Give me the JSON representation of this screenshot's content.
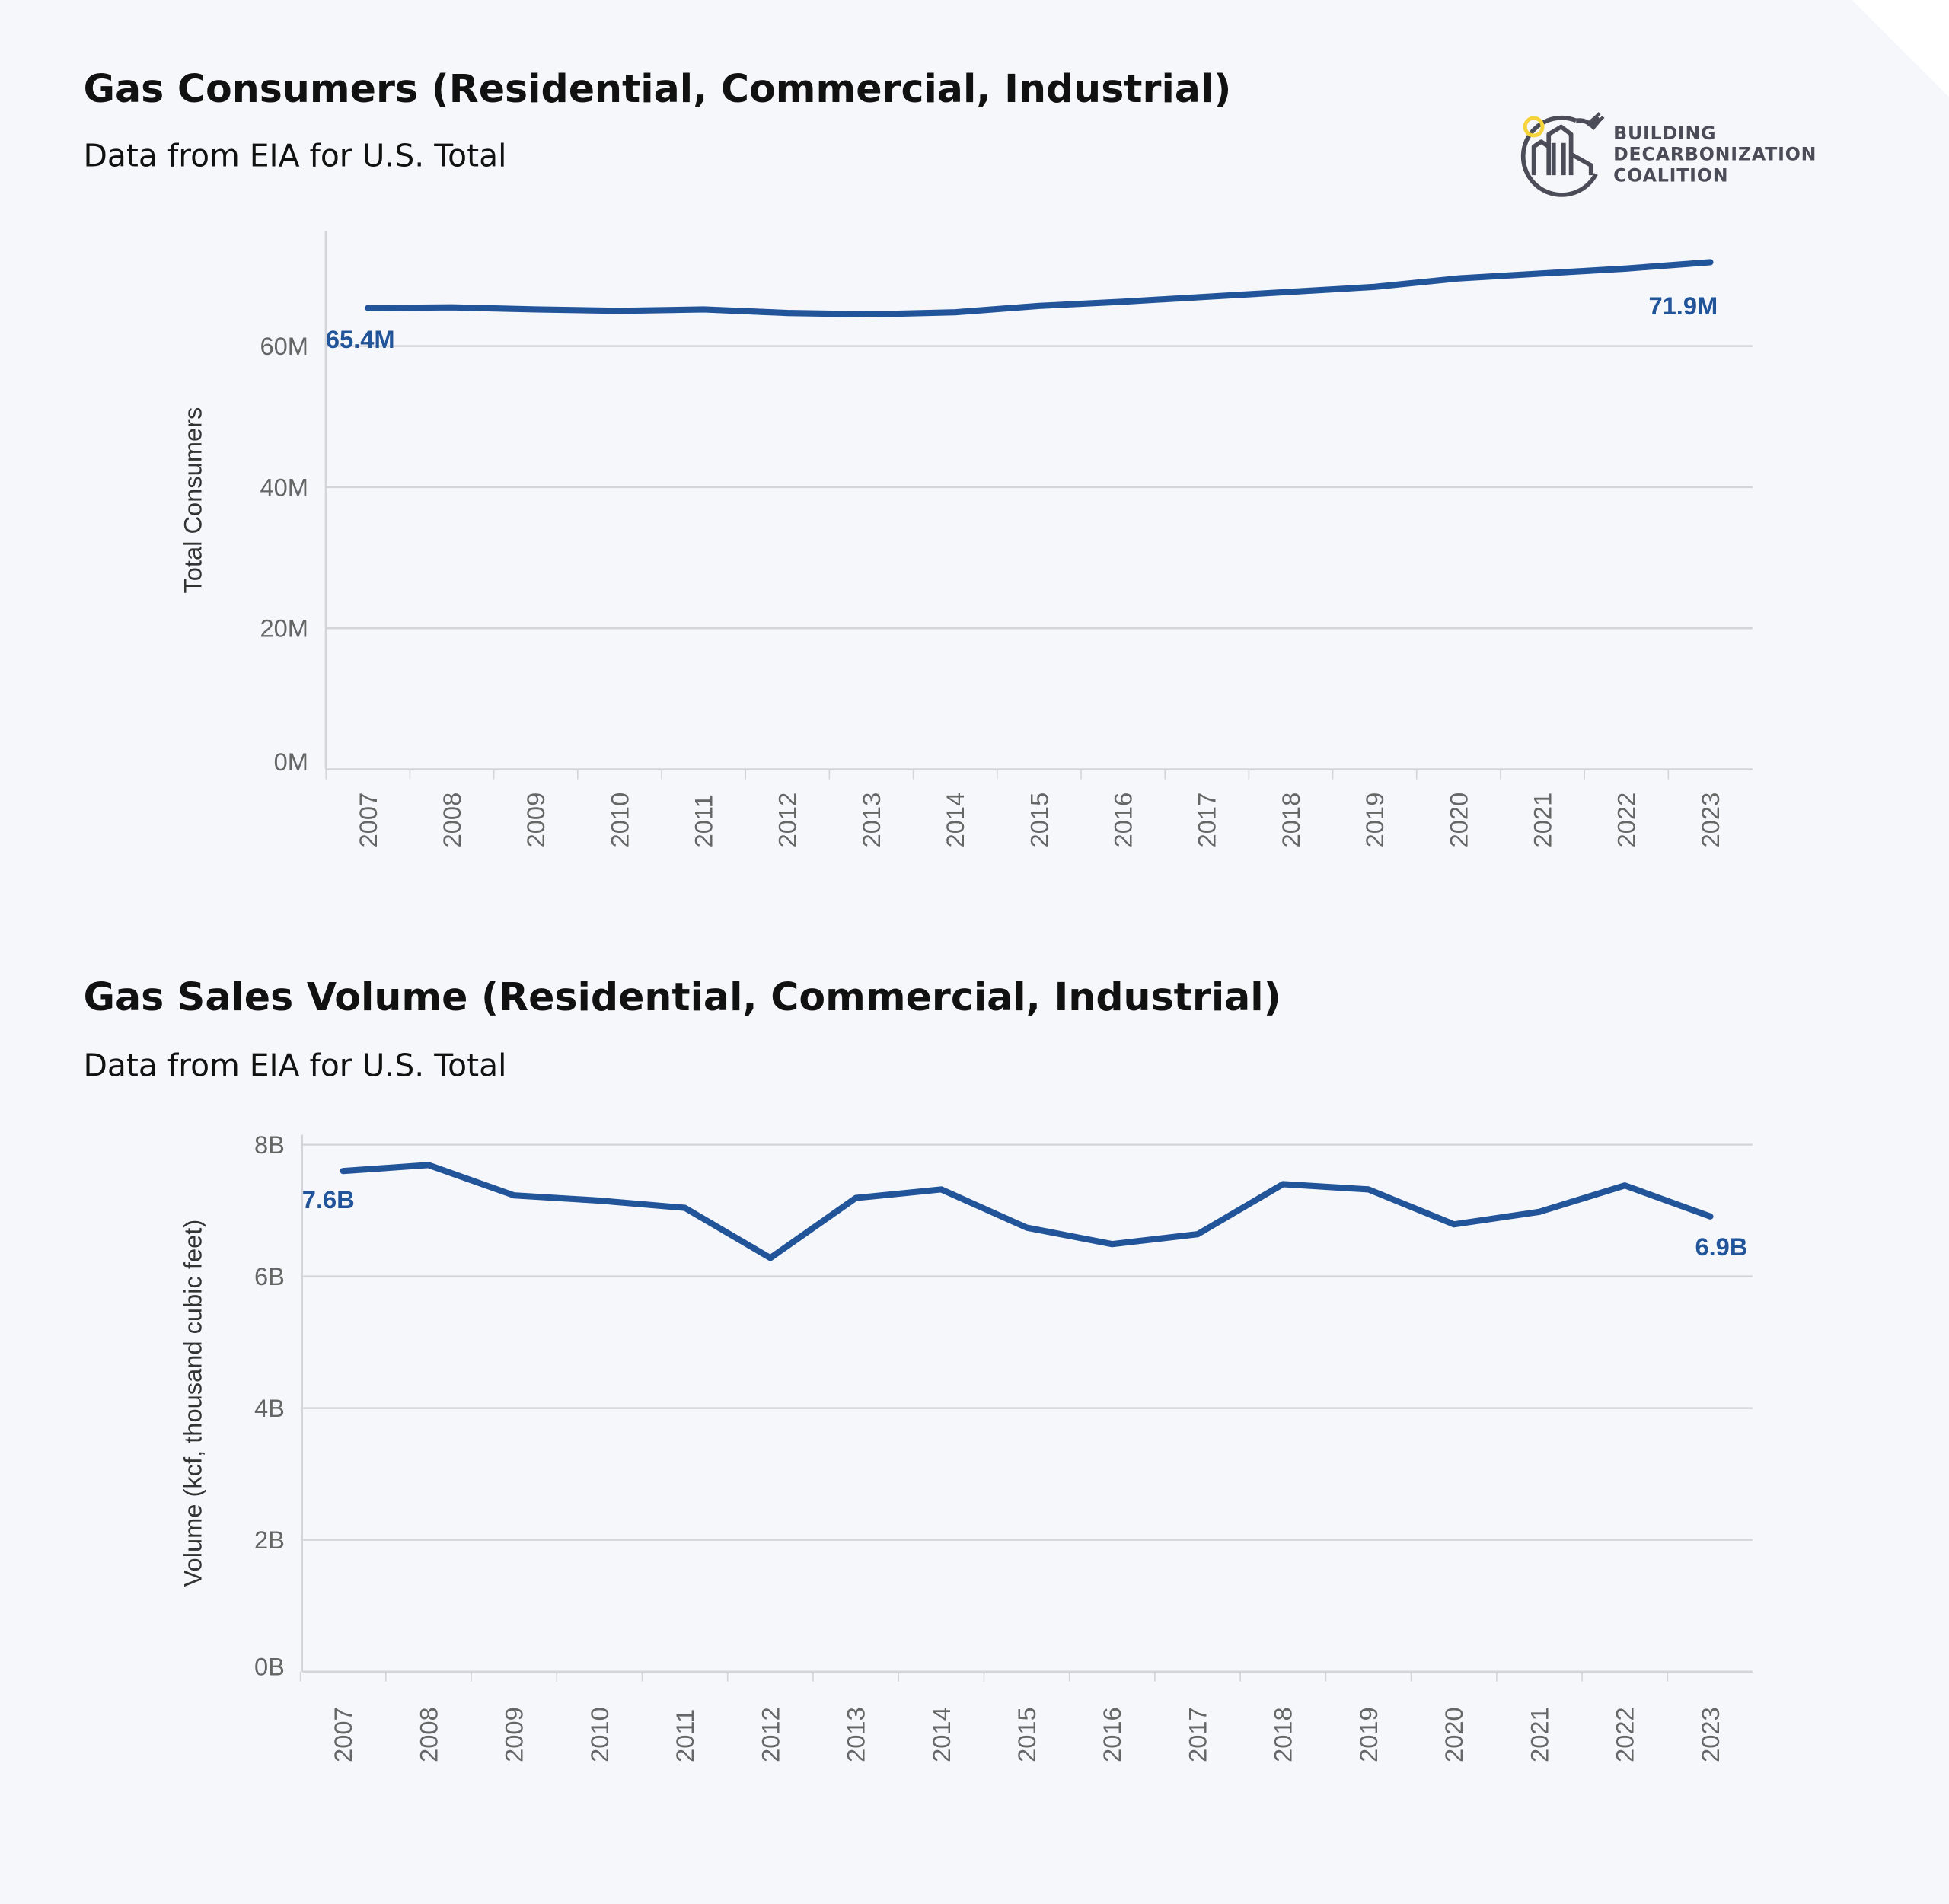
{
  "logo": {
    "lines": [
      "BUILDING",
      "DECARBONIZATION",
      "COALITION"
    ]
  },
  "colors": {
    "line": "#22549a",
    "grid": "#d4d5da",
    "background": "#f6f7fb",
    "logo_sun": "#f5d33b",
    "logo_gray": "#4a4d57"
  },
  "chart_data": [
    {
      "type": "line",
      "title": "Gas Consumers (Residential, Commercial, Industrial)",
      "subtitle": "Data from EIA for U.S. Total",
      "xlabel": "",
      "ylabel": "Total Consumers",
      "ylim": [
        0,
        72000000
      ],
      "yticks": [
        0,
        20000000,
        40000000,
        60000000
      ],
      "ytick_labels": [
        "0M",
        "20M",
        "40M",
        "60M"
      ],
      "grid": true,
      "categories": [
        "2007",
        "2008",
        "2009",
        "2010",
        "2011",
        "2012",
        "2013",
        "2014",
        "2015",
        "2016",
        "2017",
        "2018",
        "2019",
        "2020",
        "2021",
        "2022",
        "2023"
      ],
      "values": [
        65400000,
        65500000,
        65200000,
        65000000,
        65200000,
        64700000,
        64500000,
        64800000,
        65700000,
        66300000,
        67000000,
        67700000,
        68400000,
        69600000,
        70300000,
        71000000,
        71900000
      ],
      "annotations": {
        "first": "65.4M",
        "last": "71.9M"
      }
    },
    {
      "type": "line",
      "title": "Gas Sales Volume (Residential, Commercial, Industrial)",
      "subtitle": "Data from EIA for U.S. Total",
      "xlabel": "",
      "ylabel": "Volume (kcf, thousand cubic feet)",
      "ylim": [
        0,
        8150000000
      ],
      "yticks": [
        0,
        2000000000,
        4000000000,
        6000000000,
        8000000000
      ],
      "ytick_labels": [
        "0B",
        "2B",
        "4B",
        "6B",
        "8B"
      ],
      "grid": true,
      "categories": [
        "2007",
        "2008",
        "2009",
        "2010",
        "2011",
        "2012",
        "2013",
        "2014",
        "2015",
        "2016",
        "2017",
        "2018",
        "2019",
        "2020",
        "2021",
        "2022",
        "2023"
      ],
      "values": [
        7600000000,
        7690000000,
        7230000000,
        7150000000,
        7040000000,
        6280000000,
        7190000000,
        7320000000,
        6740000000,
        6490000000,
        6640000000,
        7400000000,
        7320000000,
        6790000000,
        6980000000,
        7380000000,
        6910000000
      ],
      "annotations": {
        "first": "7.6B",
        "last": "6.9B"
      }
    }
  ]
}
